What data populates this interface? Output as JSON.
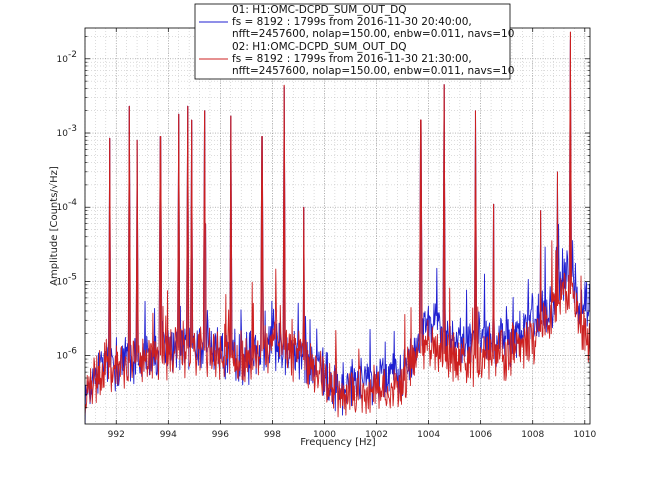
{
  "chart_data": {
    "type": "line",
    "xlabel": "Frequency [Hz]",
    "ylabel": "Amplitude [Counts/√Hz]",
    "xlim": [
      990.8,
      1010.2
    ],
    "ylim": [
      1.2e-07,
      0.026
    ],
    "yscale": "log",
    "grid": true,
    "legend_position": "top-center",
    "x_ticks": [
      {
        "value": 992,
        "label": "992"
      },
      {
        "value": 994,
        "label": "994"
      },
      {
        "value": 996,
        "label": "996"
      },
      {
        "value": 998,
        "label": "998"
      },
      {
        "value": 1000,
        "label": "1000"
      },
      {
        "value": 1002,
        "label": "1002"
      },
      {
        "value": 1004,
        "label": "1004"
      },
      {
        "value": 1006,
        "label": "1006"
      },
      {
        "value": 1008,
        "label": "1008"
      },
      {
        "value": 1010,
        "label": "1010"
      }
    ],
    "y_ticks": [
      {
        "value": 1e-06,
        "base": "10",
        "exp": "-6"
      },
      {
        "value": 1e-05,
        "base": "10",
        "exp": "-5"
      },
      {
        "value": 0.0001,
        "base": "10",
        "exp": "-4"
      },
      {
        "value": 0.001,
        "base": "10",
        "exp": "-3"
      },
      {
        "value": 0.01,
        "base": "10",
        "exp": "-2"
      }
    ],
    "series": [
      {
        "name": "01: H1:OMC-DCPD_SUM_OUT_DQ",
        "legend_lines": [
          "01: H1:OMC-DCPD_SUM_OUT_DQ",
          "fs = 8192 : 1799s from 2016-11-30 20:40:00,",
          "nfft=2457600, nolap=150.00, enbw=0.011, navs=10"
        ],
        "color": "#1f1fd0",
        "baseline": [
          [
            990.8,
            2.5e-07
          ],
          [
            991.0,
            4.5e-07
          ],
          [
            991.5,
            7e-07
          ],
          [
            992.0,
            8e-07
          ],
          [
            993.0,
            9e-07
          ],
          [
            994.0,
            1.2e-06
          ],
          [
            995.0,
            1.4e-06
          ],
          [
            996.0,
            1.1e-06
          ],
          [
            997.0,
            9e-07
          ],
          [
            998.0,
            1.5e-06
          ],
          [
            999.0,
            1.1e-06
          ],
          [
            1000.0,
            6e-07
          ],
          [
            1000.5,
            3.5e-07
          ],
          [
            1001.0,
            4e-07
          ],
          [
            1001.5,
            4.5e-07
          ],
          [
            1002.5,
            4.5e-07
          ],
          [
            1003.0,
            6e-07
          ],
          [
            1003.5,
            1.5e-06
          ],
          [
            1004.0,
            3e-06
          ],
          [
            1004.5,
            2.2e-06
          ],
          [
            1005.0,
            1.6e-06
          ],
          [
            1005.5,
            1.4e-06
          ],
          [
            1006.0,
            1.8e-06
          ],
          [
            1006.5,
            1.5e-06
          ],
          [
            1007.0,
            1.7e-06
          ],
          [
            1007.5,
            2e-06
          ],
          [
            1008.0,
            3e-06
          ],
          [
            1008.5,
            4e-06
          ],
          [
            1009.0,
            8e-06
          ],
          [
            1009.5,
            1.4e-05
          ],
          [
            1009.8,
            6e-06
          ],
          [
            1010.2,
            4e-06
          ]
        ],
        "peaks": [
          [
            991.75,
            0.00085
          ],
          [
            992.5,
            0.0023
          ],
          [
            992.8,
            0.0008
          ],
          [
            993.7,
            0.0009
          ],
          [
            994.4,
            0.0018
          ],
          [
            994.75,
            0.0023
          ],
          [
            994.9,
            0.0015
          ],
          [
            995.4,
            0.002
          ],
          [
            996.4,
            0.0017
          ],
          [
            997.6,
            0.0009
          ],
          [
            998.45,
            0.0042
          ],
          [
            999.2,
            0.0001
          ],
          [
            1003.7,
            0.0015
          ],
          [
            1004.6,
            0.0045
          ],
          [
            1005.8,
            0.002
          ],
          [
            1006.5,
            0.00011
          ],
          [
            1008.3,
            9e-05
          ],
          [
            1008.95,
            0.0003
          ],
          [
            1009.45,
            0.018
          ]
        ]
      },
      {
        "name": "02: H1:OMC-DCPD_SUM_OUT_DQ",
        "legend_lines": [
          "02: H1:OMC-DCPD_SUM_OUT_DQ",
          "fs = 8192 : 1799s from 2016-11-30 21:30:00,",
          "nfft=2457600, nolap=150.00, enbw=0.011, navs=10"
        ],
        "color": "#cc2020",
        "baseline": [
          [
            990.8,
            2e-07
          ],
          [
            991.0,
            4e-07
          ],
          [
            991.5,
            6.5e-07
          ],
          [
            992.0,
            7.5e-07
          ],
          [
            993.0,
            8.5e-07
          ],
          [
            994.0,
            1.1e-06
          ],
          [
            995.0,
            1.3e-06
          ],
          [
            996.0,
            1e-06
          ],
          [
            997.0,
            8.5e-07
          ],
          [
            998.0,
            1.4e-06
          ],
          [
            999.0,
            1e-06
          ],
          [
            1000.0,
            5e-07
          ],
          [
            1000.5,
            3e-07
          ],
          [
            1001.0,
            2.6e-07
          ],
          [
            1001.5,
            3.2e-07
          ],
          [
            1002.5,
            3.5e-07
          ],
          [
            1003.0,
            4.5e-07
          ],
          [
            1003.5,
            9e-07
          ],
          [
            1004.0,
            1.4e-06
          ],
          [
            1004.5,
            1.1e-06
          ],
          [
            1005.0,
            9e-07
          ],
          [
            1005.5,
            8e-07
          ],
          [
            1006.0,
            1e-06
          ],
          [
            1006.5,
            9e-07
          ],
          [
            1007.0,
            1e-06
          ],
          [
            1007.5,
            1.3e-06
          ],
          [
            1008.0,
            1.6e-06
          ],
          [
            1008.5,
            2.5e-06
          ],
          [
            1009.0,
            5e-06
          ],
          [
            1009.5,
            7e-06
          ],
          [
            1009.8,
            3e-06
          ],
          [
            1010.2,
            1.6e-06
          ]
        ],
        "peaks": [
          [
            991.75,
            0.00085
          ],
          [
            992.5,
            0.0023
          ],
          [
            992.8,
            0.0008
          ],
          [
            993.7,
            0.0009
          ],
          [
            994.4,
            0.0018
          ],
          [
            994.75,
            0.0023
          ],
          [
            994.9,
            0.0015
          ],
          [
            995.4,
            0.002
          ],
          [
            996.4,
            0.0017
          ],
          [
            997.6,
            0.0009
          ],
          [
            998.45,
            0.0044
          ],
          [
            999.2,
            0.0001
          ],
          [
            1003.7,
            0.0015
          ],
          [
            1004.6,
            0.0045
          ],
          [
            1005.8,
            0.002
          ],
          [
            1006.5,
            0.00011
          ],
          [
            1008.3,
            9e-05
          ],
          [
            1008.95,
            0.0003
          ],
          [
            1009.45,
            0.023
          ]
        ]
      }
    ]
  }
}
